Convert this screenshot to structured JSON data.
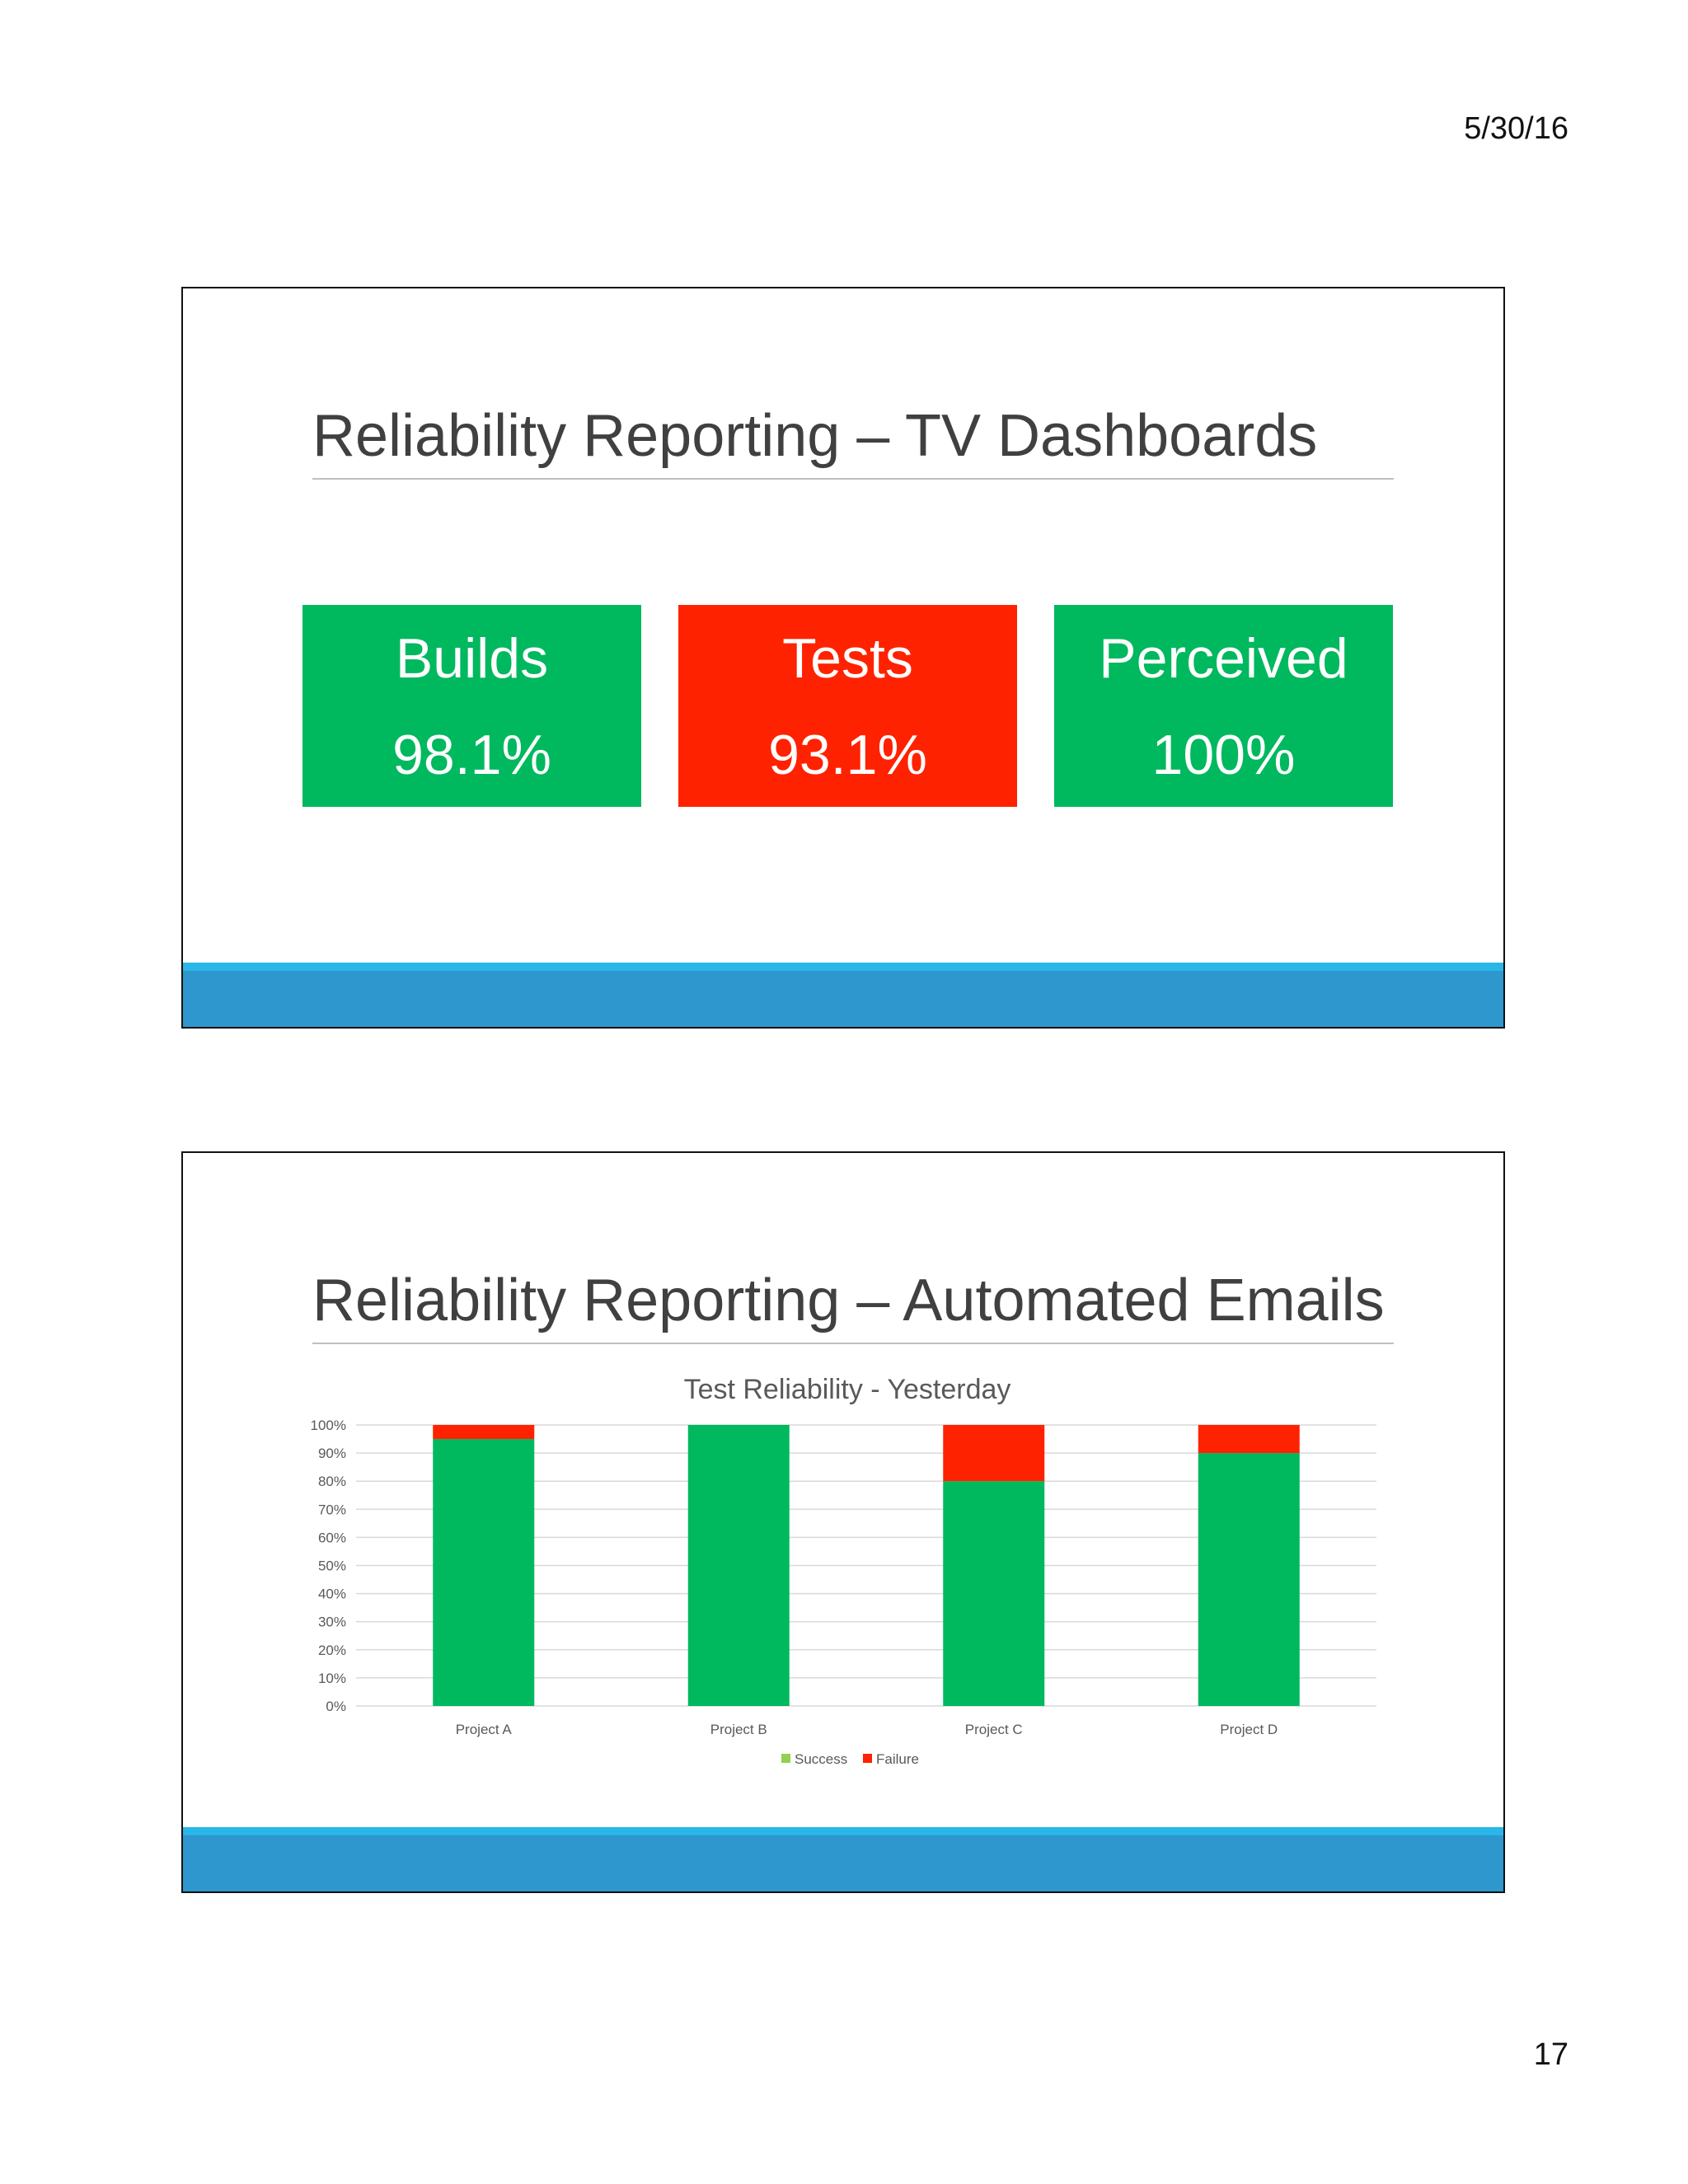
{
  "header": {
    "date": "5/30/16"
  },
  "footer": {
    "page_number": "17"
  },
  "slide1": {
    "title": "Reliability Reporting – TV Dashboards",
    "tiles": [
      {
        "label": "Builds",
        "value": "98.1%",
        "color": "#00b85e"
      },
      {
        "label": "Tests",
        "value": "93.1%",
        "color": "#ff2200"
      },
      {
        "label": "Perceived",
        "value": "100%",
        "color": "#00b85e"
      }
    ]
  },
  "slide2": {
    "title": "Reliability Reporting – Automated Emails"
  },
  "chart_data": {
    "type": "bar",
    "stacked": true,
    "title": "Test Reliability - Yesterday",
    "categories": [
      "Project A",
      "Project B",
      "Project C",
      "Project D"
    ],
    "series": [
      {
        "name": "Success",
        "values": [
          95,
          100,
          80,
          90
        ],
        "color": "#00b85e",
        "legend_color": "#92d050"
      },
      {
        "name": "Failure",
        "values": [
          5,
          0,
          20,
          10
        ],
        "color": "#ff2200",
        "legend_color": "#ff2200"
      }
    ],
    "ylim": [
      0,
      100
    ],
    "yticks": [
      "0%",
      "10%",
      "20%",
      "30%",
      "40%",
      "50%",
      "60%",
      "70%",
      "80%",
      "90%",
      "100%"
    ],
    "grid": true,
    "legend": "bottom"
  }
}
